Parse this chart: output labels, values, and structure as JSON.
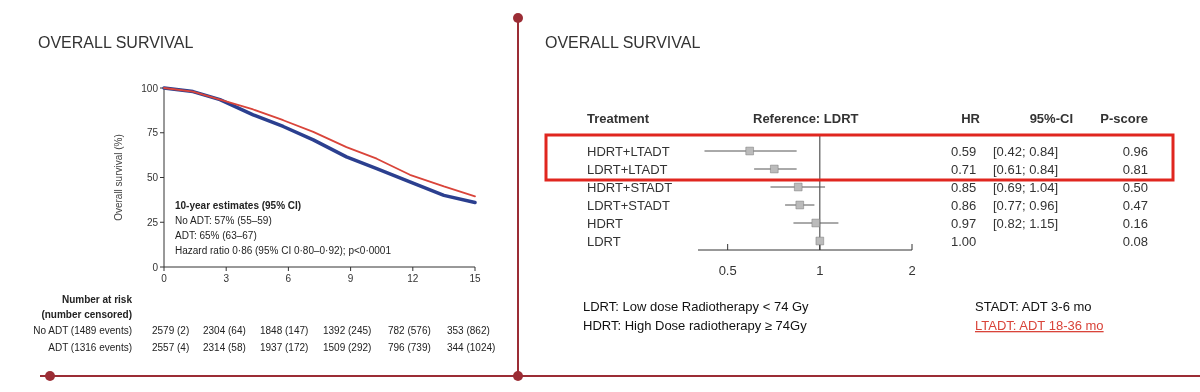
{
  "chart_data": [
    {
      "type": "line",
      "title": "OVERALL SURVIVAL",
      "ylabel": "Overall survival (%)",
      "xlim": [
        0,
        15
      ],
      "xticks": [
        0,
        3,
        6,
        9,
        12,
        15
      ],
      "ylim": [
        0,
        100
      ],
      "yticks": [
        0,
        25,
        50,
        75,
        100
      ],
      "series": [
        {
          "color": "#2b3f8f",
          "x": [
            0,
            1.4,
            2.7,
            4.3,
            5.75,
            7.2,
            8.8,
            10.26,
            11.86,
            13.5,
            15
          ],
          "values": [
            100,
            98,
            93.5,
            85,
            78.5,
            71,
            61.5,
            55,
            47.5,
            40,
            36
          ]
        },
        {
          "color": "#d9443a",
          "x": [
            0,
            1.4,
            2.7,
            4.3,
            5.75,
            7.2,
            8.8,
            10.26,
            11.86,
            13.5,
            15
          ],
          "values": [
            100,
            98,
            93.5,
            88,
            82,
            75.5,
            67,
            60.5,
            51.5,
            45,
            39.5
          ]
        }
      ],
      "annotations": [
        "10-year estimates (95% CI)",
        "No ADT: 57% (55–59)",
        "ADT: 65% (63–67)",
        "Hazard ratio 0·86 (95% CI 0·80–0·92); p<0·0001",
        "Number at risk",
        "(number censored)",
        "No ADT (1489 events)",
        "2579 (2)",
        "2304 (64)",
        "1848 (147)",
        "1392 (245)",
        "782 (576)",
        "353 (862)",
        "ADT (1316 events)",
        "2557 (4)",
        "2314 (58)",
        "1937 (172)",
        "1509 (292)",
        "796 (739)",
        "344 (1024)"
      ]
    },
    {
      "type": "scatter",
      "orientation": "horizontal",
      "title": "OVERALL SURVIVAL",
      "log": "x",
      "marker": "square",
      "xlim": [
        0.4,
        2
      ],
      "xticks": [
        0.5,
        1,
        2
      ],
      "categories": [
        "HDRT+LTADT",
        "LDRT+LTADT",
        "HDRT+STADT",
        "LDRT+STADT",
        "HDRT",
        "LDRT"
      ],
      "values": [
        0.59,
        0.71,
        0.85,
        0.86,
        0.97,
        1.0
      ],
      "errors": [
        [
          0.42,
          0.84
        ],
        [
          0.61,
          0.84
        ],
        [
          0.69,
          1.04
        ],
        [
          0.77,
          0.96
        ],
        [
          0.82,
          1.15
        ],
        null
      ],
      "value_labels": [
        "0.59",
        "0.71",
        "0.85",
        "0.86",
        "0.97",
        "1.00"
      ],
      "ref_lines": [
        {
          "axis": "x",
          "value": 1
        }
      ],
      "annotations": [
        "Treatment",
        "Reference: LDRT",
        "HR",
        "95%-CI",
        "P-score",
        "[0.42; 0.84]",
        "[0.61; 0.84]",
        "[0.69; 1.04]",
        "[0.77; 0.96]",
        "[0.82; 1.15]",
        "0.96",
        "0.81",
        "0.50",
        "0.47",
        "0.16",
        "0.08",
        "LDRT: Low dose Radiotherapy < 74 Gy",
        "HDRT: High Dose radiotherapy ≥ 74Gy",
        "STADT: ADT 3-6 mo",
        "LTADT: ADT 18-36 mo"
      ]
    }
  ]
}
